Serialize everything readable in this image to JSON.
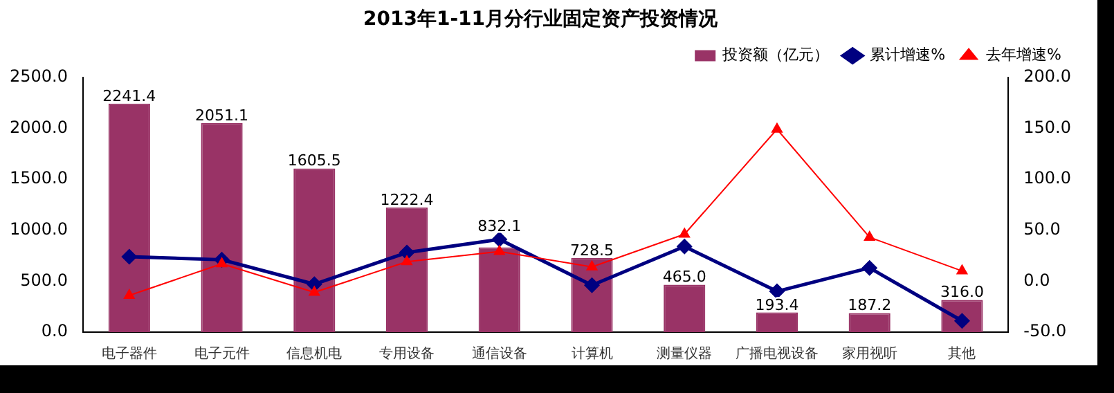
{
  "chart_data": {
    "type": "bar",
    "title": "2013年1-11月分行业固定资产投资情况",
    "categories": [
      "电子器件",
      "电子元件",
      "信息机电",
      "专用设备",
      "通信设备",
      "计算机",
      "测量仪器",
      "广播电视设备",
      "家用视听",
      "其他"
    ],
    "series": [
      {
        "name": "投资额（亿元）",
        "color": "#993366",
        "values": [
          2241.4,
          2051.1,
          1605.5,
          1222.4,
          832.1,
          728.5,
          465.0,
          193.4,
          187.2,
          316.0
        ],
        "value_labels": [
          "2241.4",
          "2051.1",
          "1605.5",
          "1222.4",
          "832.1",
          "728.5",
          "465.0",
          "193.4",
          "187.2",
          "316.0"
        ]
      },
      {
        "name": "累计增速%",
        "type": "line",
        "axis": "y2",
        "color": "#000080",
        "marker": "diamond",
        "values": [
          24,
          21,
          -3,
          28,
          41,
          -4,
          34,
          -10,
          13,
          -39
        ]
      },
      {
        "name": "去年增速%",
        "type": "line",
        "axis": "y2",
        "color": "#ff0000",
        "marker": "triangle",
        "values": [
          -14,
          17,
          -11,
          19,
          29,
          14,
          46,
          149,
          43,
          10
        ]
      }
    ],
    "ylim": [
      0,
      2500
    ],
    "yticks": [
      {
        "value": 0,
        "label": "0.0"
      },
      {
        "value": 500,
        "label": "500.0"
      },
      {
        "value": 1000,
        "label": "1000.0"
      },
      {
        "value": 1500,
        "label": "1500.0"
      },
      {
        "value": 2000,
        "label": "2000.0"
      },
      {
        "value": 2500,
        "label": "2500.0"
      }
    ],
    "y2lim": [
      -50,
      200
    ],
    "y2ticks": [
      {
        "value": -50,
        "label": "-50.0"
      },
      {
        "value": 0,
        "label": "0.0"
      },
      {
        "value": 50,
        "label": "50.0"
      },
      {
        "value": 100,
        "label": "100.0"
      },
      {
        "value": 150,
        "label": "150.0"
      },
      {
        "value": 200,
        "label": "200.0"
      }
    ],
    "grid": false,
    "legend": "top right",
    "line_style": "solid"
  }
}
